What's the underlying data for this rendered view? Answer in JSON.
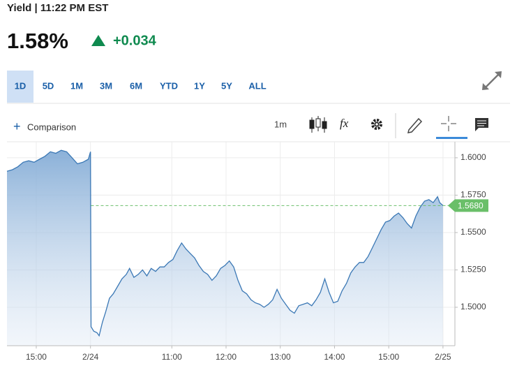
{
  "header": {
    "title": "Yield | 11:22 PM EST",
    "price": "1.58%",
    "change": "+0.034"
  },
  "range_tabs": [
    "1D",
    "5D",
    "1M",
    "3M",
    "6M",
    "YTD",
    "1Y",
    "5Y",
    "ALL"
  ],
  "toolbar": {
    "comparison": "Comparison",
    "interval": "1m",
    "indicator_icon": "fx"
  },
  "chart_data": {
    "type": "area",
    "x": [
      -0.54,
      -0.44,
      -0.34,
      -0.24,
      -0.14,
      -0.04,
      0.06,
      0.16,
      0.26,
      0.36,
      0.46,
      0.56,
      0.66,
      0.76,
      0.86,
      0.96,
      1.0,
      1.01,
      1.06,
      1.12,
      1.16,
      1.22,
      1.28,
      1.35,
      1.42,
      1.5,
      1.58,
      1.66,
      1.72,
      1.8,
      1.88,
      1.96,
      2.04,
      2.12,
      2.2,
      2.28,
      2.36,
      2.44,
      2.52,
      2.6,
      2.68,
      2.76,
      2.84,
      2.92,
      3.0,
      3.08,
      3.16,
      3.24,
      3.32,
      3.4,
      3.48,
      3.56,
      3.64,
      3.72,
      3.8,
      3.88,
      3.96,
      4.04,
      4.12,
      4.2,
      4.28,
      4.36,
      4.44,
      4.52,
      4.6,
      4.68,
      4.76,
      4.84,
      4.92,
      5.0,
      5.08,
      5.16,
      5.24,
      5.32,
      5.4,
      5.48,
      5.56,
      5.64,
      5.72,
      5.8,
      5.88,
      5.96,
      6.04,
      6.12,
      6.2,
      6.28,
      6.36,
      6.44,
      6.52,
      6.6,
      6.68,
      6.76,
      6.84,
      6.92,
      7.0,
      7.08,
      7.16,
      7.24,
      7.32,
      7.4,
      7.44,
      7.5
    ],
    "series": [
      {
        "color": "#3b78b5",
        "values": [
          1.591,
          1.592,
          1.594,
          1.597,
          1.598,
          1.597,
          1.599,
          1.601,
          1.604,
          1.603,
          1.605,
          1.604,
          1.6,
          1.596,
          1.597,
          1.599,
          1.604,
          1.487,
          1.484,
          1.483,
          1.481,
          1.49,
          1.497,
          1.506,
          1.509,
          1.514,
          1.519,
          1.522,
          1.526,
          1.52,
          1.522,
          1.525,
          1.521,
          1.526,
          1.524,
          1.527,
          1.527,
          1.53,
          1.532,
          1.538,
          1.543,
          1.539,
          1.536,
          1.533,
          1.528,
          1.524,
          1.522,
          1.518,
          1.521,
          1.526,
          1.528,
          1.531,
          1.527,
          1.518,
          1.511,
          1.509,
          1.505,
          1.503,
          1.502,
          1.5,
          1.502,
          1.505,
          1.512,
          1.506,
          1.502,
          1.498,
          1.496,
          1.501,
          1.502,
          1.503,
          1.501,
          1.505,
          1.51,
          1.519,
          1.51,
          1.503,
          1.504,
          1.511,
          1.516,
          1.523,
          1.527,
          1.53,
          1.53,
          1.534,
          1.54,
          1.546,
          1.552,
          1.557,
          1.558,
          1.561,
          1.563,
          1.56,
          1.556,
          1.553,
          1.561,
          1.567,
          1.571,
          1.572,
          1.57,
          1.574,
          1.57,
          1.568
        ]
      }
    ],
    "xlim": [
      -0.54,
      7.72
    ],
    "ylim": [
      1.4743,
      1.6107
    ],
    "xticks": [
      {
        "value": 0,
        "label": "15:00"
      },
      {
        "value": 1,
        "label": "2/24"
      },
      {
        "value": 2.5,
        "label": "11:00"
      },
      {
        "value": 3.5,
        "label": "12:00"
      },
      {
        "value": 4.5,
        "label": "13:00"
      },
      {
        "value": 5.5,
        "label": "14:00"
      },
      {
        "value": 6.5,
        "label": "15:00"
      },
      {
        "value": 7.5,
        "label": "2/25"
      }
    ],
    "yticks": [
      {
        "value": 1.5,
        "label": "1.5000"
      },
      {
        "value": 1.525,
        "label": "1.5250"
      },
      {
        "value": 1.55,
        "label": "1.5500"
      },
      {
        "value": 1.575,
        "label": "1.5750"
      },
      {
        "value": 1.6,
        "label": "1.6000"
      }
    ],
    "grid": true,
    "reference_line": {
      "value": 1.568,
      "label": "1.5680",
      "color": "#6abf69"
    }
  }
}
